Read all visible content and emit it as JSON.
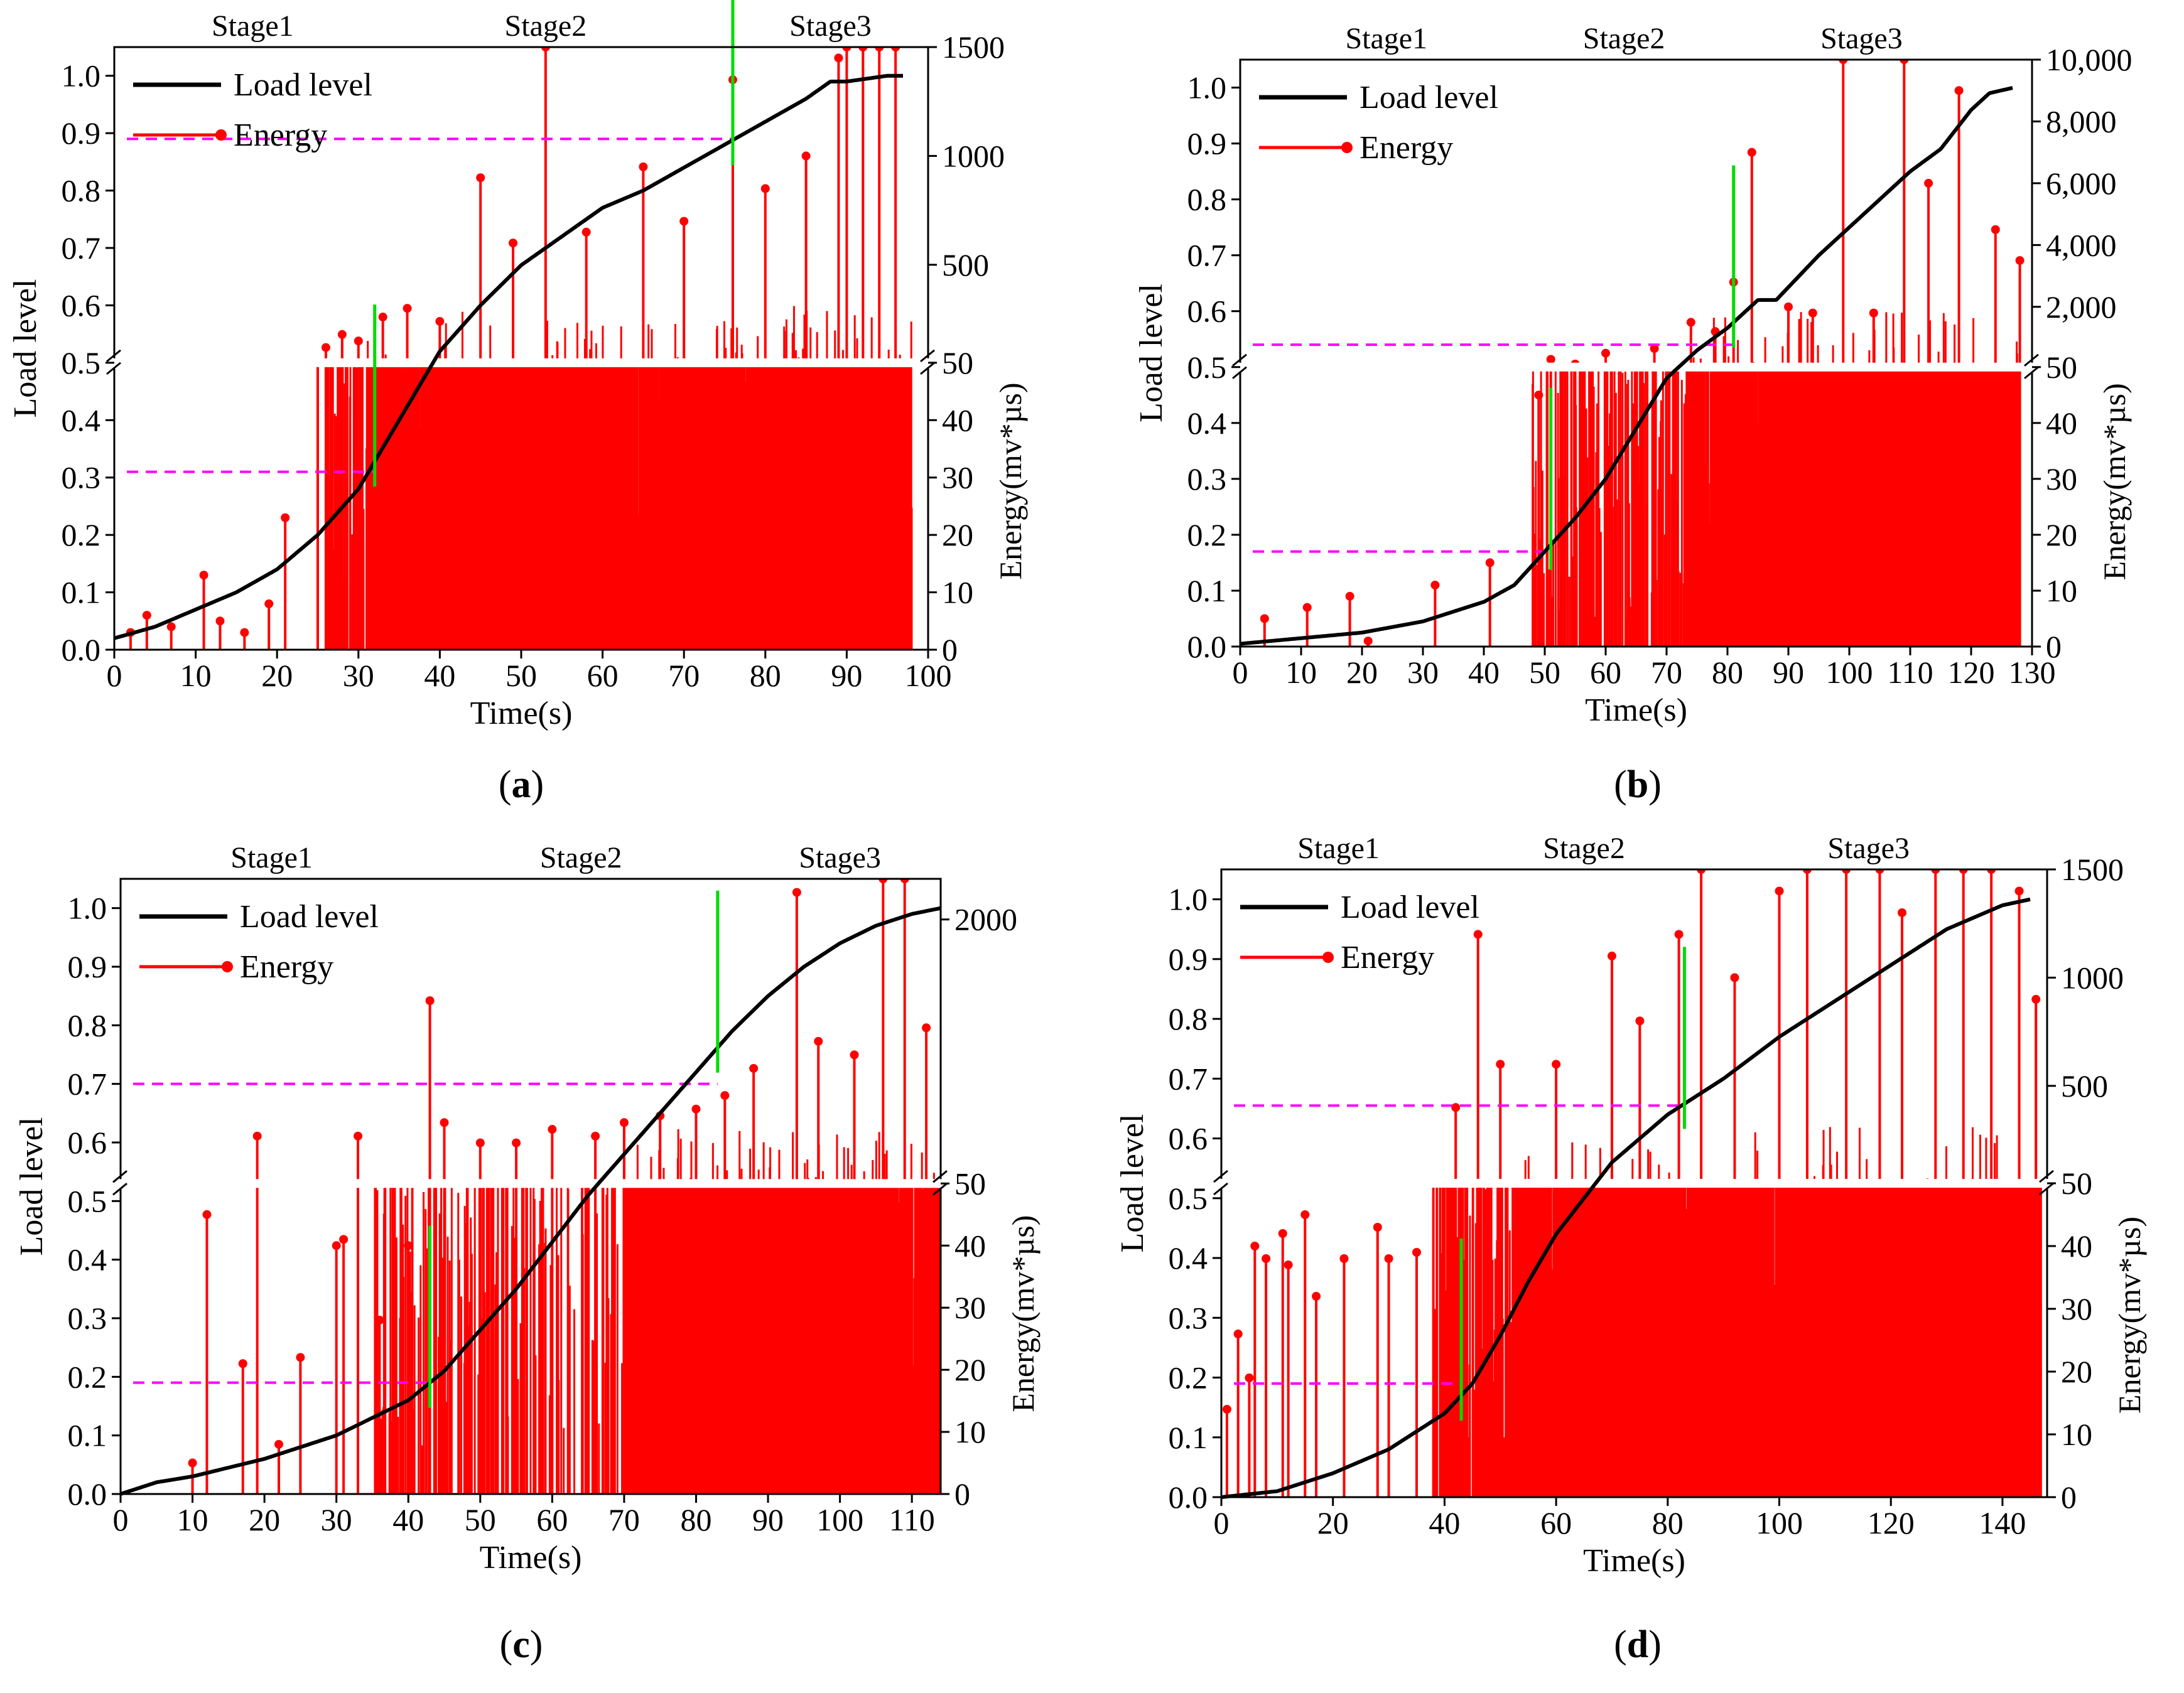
{
  "figure": {
    "colors": {
      "energy": "#ff0000",
      "load": "#000000",
      "threshold": "#ff00ff",
      "stage_divider": "#00dd00",
      "axes": "#000000",
      "break": "#ffffff"
    }
  },
  "chart_data": [
    {
      "panel_label": "a",
      "type": "line",
      "title": "",
      "xlabel": "Time(s)",
      "ylabel_left": "Load level",
      "ylabel_right": "Energy(mv*µs)",
      "xlim": [
        0,
        100
      ],
      "x_ticks": [
        "0",
        "10",
        "20",
        "30",
        "40",
        "50",
        "60",
        "70",
        "80",
        "90",
        "100"
      ],
      "ylim_left": [
        0,
        1.05
      ],
      "y_ticks_left": [
        "0.0",
        "0.1",
        "0.2",
        "0.3",
        "0.4",
        "0.5",
        "0.6",
        "0.7",
        "0.8",
        "0.9",
        "1.0"
      ],
      "energy_axis": {
        "break_at_load_level": 0.5,
        "lower_range": [
          0,
          50
        ],
        "lower_ticks": [
          "0",
          "10",
          "20",
          "30",
          "40",
          "50"
        ],
        "upper_range": [
          50,
          1500
        ],
        "upper_ticks": [
          "500",
          "1000",
          "1500"
        ]
      },
      "stage_labels": [
        "Stage1",
        "Stage2",
        "Stage3"
      ],
      "stage_label_x": [
        17,
        53,
        88
      ],
      "stage_dividers_time": [
        32,
        76
      ],
      "threshold_lines": [
        {
          "load_level": 0.31,
          "x_end": 32
        },
        {
          "load_level": 0.89,
          "x_end": 76
        }
      ],
      "legend": [
        "Load level",
        "Energy"
      ],
      "series": [
        {
          "name": "Load level",
          "x": [
            0,
            5,
            10,
            15,
            20,
            25,
            30,
            35,
            40,
            45,
            50,
            55,
            60,
            65,
            70,
            75,
            80,
            85,
            88,
            90,
            95,
            97
          ],
          "values": [
            0.02,
            0.04,
            0.07,
            0.1,
            0.14,
            0.2,
            0.28,
            0.4,
            0.52,
            0.6,
            0.67,
            0.72,
            0.77,
            0.8,
            0.84,
            0.88,
            0.92,
            0.96,
            0.99,
            0.99,
            1.0,
            1.0
          ]
        },
        {
          "name": "Energy",
          "onset_time": 26,
          "dense_start_time": 31,
          "end_time": 98,
          "low_density": 0.6,
          "high_density": 1.6,
          "x": [
            2,
            4,
            7,
            11,
            13,
            16,
            19,
            21,
            25,
            26,
            28,
            30,
            33,
            36,
            40,
            45,
            49,
            53,
            58,
            65,
            70,
            76,
            80,
            85,
            89,
            90,
            92,
            94,
            96
          ],
          "values": [
            3,
            6,
            4,
            13,
            5,
            3,
            8,
            23,
            50,
            120,
            180,
            150,
            260,
            300,
            240,
            900,
            600,
            1500,
            650,
            950,
            700,
            1350,
            850,
            1000,
            1450,
            1500,
            1500,
            1500,
            1500
          ]
        }
      ]
    },
    {
      "panel_label": "b",
      "type": "line",
      "title": "",
      "xlabel": "Time(s)",
      "ylabel_left": "Load level",
      "ylabel_right": "Energy(mv*µs)",
      "xlim": [
        0,
        130
      ],
      "x_ticks": [
        "0",
        "10",
        "20",
        "30",
        "40",
        "50",
        "60",
        "70",
        "80",
        "90",
        "100",
        "110",
        "120",
        "130"
      ],
      "ylim_left": [
        0,
        1.05
      ],
      "y_ticks_left": [
        "0.0",
        "0.1",
        "0.2",
        "0.3",
        "0.4",
        "0.5",
        "0.6",
        "0.7",
        "0.8",
        "0.9",
        "1.0"
      ],
      "energy_axis": {
        "break_at_load_level": 0.5,
        "lower_range": [
          0,
          50
        ],
        "lower_ticks": [
          "0",
          "10",
          "20",
          "30",
          "40",
          "50"
        ],
        "upper_range": [
          50,
          10000
        ],
        "upper_ticks": [
          "2,000",
          "4,000",
          "6,000",
          "8,000",
          "10,000"
        ]
      },
      "stage_labels": [
        "Stage1",
        "Stage2",
        "Stage3"
      ],
      "stage_label_x": [
        24,
        63,
        102
      ],
      "stage_dividers_time": [
        51,
        81
      ],
      "threshold_lines": [
        {
          "load_level": 0.17,
          "x_end": 51
        },
        {
          "load_level": 0.54,
          "x_end": 81
        }
      ],
      "legend": [
        "Load level",
        "Energy"
      ],
      "series": [
        {
          "name": "Load level",
          "x": [
            0,
            10,
            20,
            30,
            40,
            45,
            50,
            55,
            60,
            65,
            70,
            75,
            80,
            85,
            88,
            95,
            100,
            105,
            110,
            115,
            120,
            123,
            127
          ],
          "values": [
            0.005,
            0.015,
            0.025,
            0.045,
            0.08,
            0.11,
            0.17,
            0.23,
            0.3,
            0.39,
            0.48,
            0.53,
            0.57,
            0.62,
            0.62,
            0.7,
            0.75,
            0.8,
            0.85,
            0.89,
            0.96,
            0.99,
            1.0
          ]
        },
        {
          "name": "Energy",
          "onset_time": 48,
          "dense_start_time": 74,
          "end_time": 128,
          "low_density": 0.45,
          "high_density": 1.6,
          "x": [
            4,
            11,
            18,
            21,
            32,
            41,
            49,
            51,
            55,
            60,
            68,
            74,
            78,
            81,
            84,
            90,
            94,
            99,
            104,
            109,
            113,
            118,
            124,
            128
          ],
          "values": [
            5,
            7,
            9,
            1,
            11,
            15,
            45,
            300,
            150,
            500,
            650,
            1500,
            1200,
            2800,
            7000,
            2000,
            1800,
            10000,
            1800,
            10000,
            6000,
            9000,
            4500,
            3500
          ]
        }
      ]
    },
    {
      "panel_label": "c",
      "type": "line",
      "title": "",
      "xlabel": "Time(s)",
      "ylabel_left": "Load level",
      "ylabel_right": "Energy(mv*µs)",
      "xlim": [
        0,
        114
      ],
      "x_ticks": [
        "0",
        "10",
        "20",
        "30",
        "40",
        "50",
        "60",
        "70",
        "80",
        "90",
        "100",
        "110"
      ],
      "ylim_left": [
        0,
        1.05
      ],
      "y_ticks_left": [
        "0.0",
        "0.1",
        "0.2",
        "0.3",
        "0.4",
        "0.5",
        "0.6",
        "0.7",
        "0.8",
        "0.9",
        "1.0"
      ],
      "energy_axis": {
        "break_at_load_level": 0.53,
        "lower_range": [
          0,
          50
        ],
        "lower_ticks": [
          "0",
          "10",
          "20",
          "30",
          "40",
          "50"
        ],
        "upper_range": [
          50,
          2300
        ],
        "upper_ticks": [
          "2000"
        ]
      },
      "stage_labels": [
        "Stage1",
        "Stage2",
        "Stage3"
      ],
      "stage_label_x": [
        21,
        64,
        100
      ],
      "stage_dividers_time": [
        43,
        83
      ],
      "threshold_lines": [
        {
          "load_level": 0.19,
          "x_end": 43
        },
        {
          "load_level": 0.7,
          "x_end": 83
        }
      ],
      "legend": [
        "Load level",
        "Energy"
      ],
      "series": [
        {
          "name": "Load level",
          "x": [
            0,
            5,
            10,
            20,
            30,
            40,
            45,
            50,
            55,
            60,
            65,
            70,
            75,
            80,
            85,
            90,
            95,
            100,
            105,
            110,
            114
          ],
          "values": [
            0.0,
            0.02,
            0.03,
            0.06,
            0.1,
            0.16,
            0.21,
            0.28,
            0.35,
            0.43,
            0.51,
            0.58,
            0.65,
            0.72,
            0.79,
            0.85,
            0.9,
            0.94,
            0.97,
            0.99,
            1.0
          ]
        },
        {
          "name": "Energy",
          "onset_time": 35,
          "dense_start_time": 70,
          "end_time": 114,
          "low_density": 0.35,
          "high_density": 1.5,
          "x": [
            10,
            12,
            17,
            19,
            22,
            25,
            30,
            31,
            33,
            36,
            40,
            43,
            45,
            50,
            55,
            60,
            66,
            70,
            75,
            80,
            84,
            88,
            94,
            97,
            102,
            106,
            109,
            112
          ],
          "values": [
            5,
            45,
            21,
            400,
            8,
            22,
            40,
            41,
            400,
            28,
            40,
            1400,
            500,
            350,
            350,
            450,
            400,
            500,
            550,
            600,
            700,
            900,
            2200,
            1100,
            1000,
            2300,
            2300,
            1200
          ]
        }
      ]
    },
    {
      "panel_label": "d",
      "type": "line",
      "title": "",
      "xlabel": "Time(s)",
      "ylabel_left": "Load level",
      "ylabel_right": "Energy(mv*µs)",
      "xlim": [
        0,
        148
      ],
      "x_ticks": [
        "0",
        "20",
        "40",
        "60",
        "80",
        "100",
        "120",
        "140"
      ],
      "ylim_left": [
        0,
        1.05
      ],
      "y_ticks_left": [
        "0.0",
        "0.1",
        "0.2",
        "0.3",
        "0.4",
        "0.5",
        "0.6",
        "0.7",
        "0.8",
        "0.9",
        "1.0"
      ],
      "energy_axis": {
        "break_at_load_level": 0.525,
        "lower_range": [
          0,
          50
        ],
        "lower_ticks": [
          "0",
          "10",
          "20",
          "30",
          "40",
          "50"
        ],
        "upper_range": [
          50,
          1500
        ],
        "upper_ticks": [
          "500",
          "1000",
          "1500"
        ]
      },
      "stage_labels": [
        "Stage1",
        "Stage2",
        "Stage3"
      ],
      "stage_label_x": [
        21,
        65,
        116
      ],
      "stage_dividers_time": [
        43,
        83
      ],
      "threshold_lines": [
        {
          "load_level": 0.19,
          "x_end": 43
        },
        {
          "load_level": 0.655,
          "x_end": 83
        }
      ],
      "legend": [
        "Load level",
        "Energy"
      ],
      "series": [
        {
          "name": "Load level",
          "x": [
            0,
            10,
            20,
            30,
            40,
            45,
            50,
            55,
            60,
            65,
            70,
            75,
            80,
            85,
            90,
            100,
            110,
            120,
            130,
            135,
            140,
            145
          ],
          "values": [
            0.0,
            0.01,
            0.04,
            0.08,
            0.14,
            0.19,
            0.27,
            0.36,
            0.44,
            0.5,
            0.56,
            0.6,
            0.64,
            0.67,
            0.7,
            0.77,
            0.83,
            0.89,
            0.95,
            0.97,
            0.99,
            1.0
          ]
        },
        {
          "name": "Energy",
          "onset_time": 38,
          "dense_start_time": 52,
          "end_time": 147,
          "low_density": 0.7,
          "high_density": 1.4,
          "x": [
            1,
            3,
            5,
            6,
            8,
            11,
            12,
            15,
            17,
            22,
            28,
            30,
            35,
            38,
            42,
            46,
            50,
            60,
            70,
            75,
            82,
            86,
            92,
            100,
            105,
            112,
            118,
            122,
            128,
            133,
            138,
            143,
            146
          ],
          "values": [
            14,
            26,
            19,
            40,
            38,
            42,
            37,
            45,
            32,
            38,
            43,
            38,
            39,
            50,
            400,
            1200,
            600,
            600,
            1100,
            800,
            1200,
            1500,
            1000,
            1400,
            1500,
            1500,
            1500,
            1300,
            1500,
            1500,
            1500,
            1400,
            900
          ]
        }
      ]
    }
  ]
}
